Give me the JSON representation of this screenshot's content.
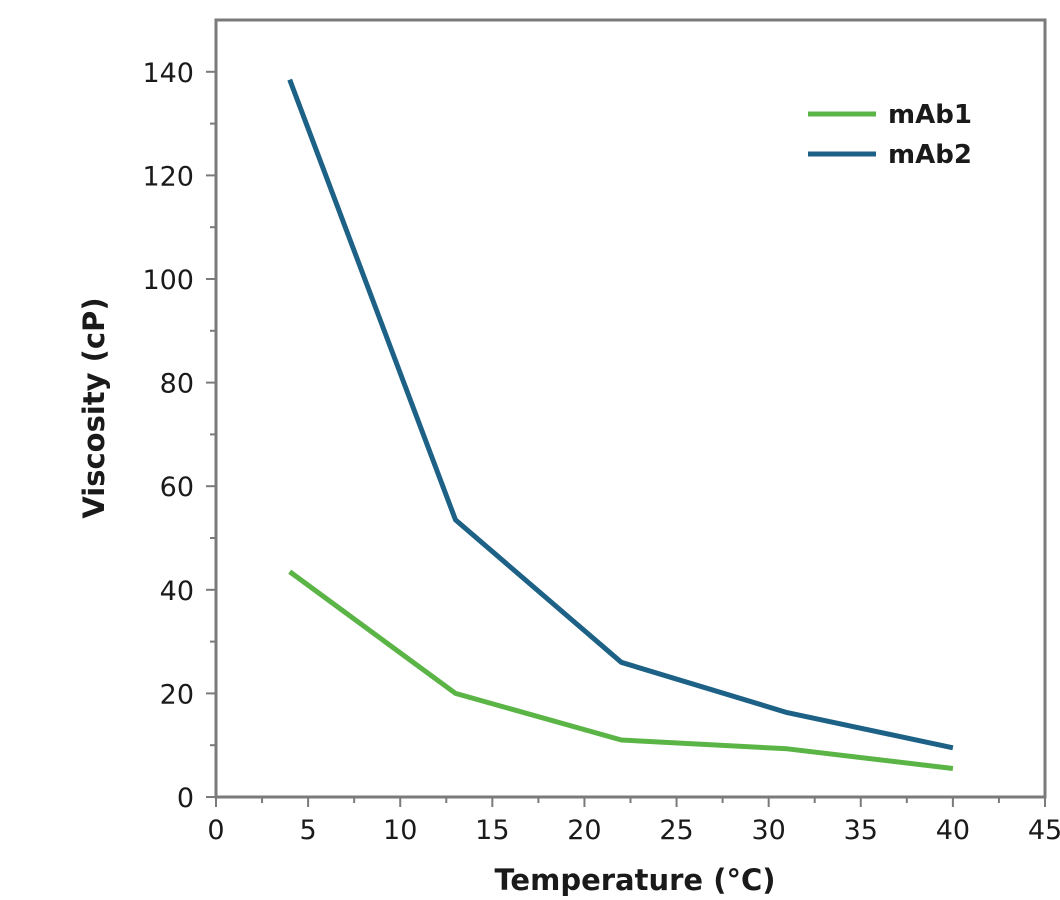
{
  "chart_data": {
    "type": "line",
    "title": "",
    "xlabel": "Temperature (°C)",
    "ylabel": "Viscosity (cP)",
    "xlim": [
      0,
      45
    ],
    "ylim": [
      0,
      150
    ],
    "xticks": [
      0,
      5,
      10,
      15,
      20,
      25,
      30,
      35,
      40,
      45
    ],
    "yticks": [
      0,
      20,
      40,
      60,
      80,
      100,
      120,
      140
    ],
    "grid": false,
    "legend_position": "top-right",
    "series": [
      {
        "name": "mAb1",
        "color": "#5bb446",
        "x": [
          4,
          13,
          22,
          31,
          40
        ],
        "y": [
          43.5,
          20,
          11,
          9.3,
          5.5
        ]
      },
      {
        "name": "mAb2",
        "color": "#1d6186",
        "x": [
          4,
          13,
          22,
          31,
          40
        ],
        "y": [
          138.5,
          53.5,
          26,
          16.3,
          9.5
        ]
      }
    ]
  }
}
